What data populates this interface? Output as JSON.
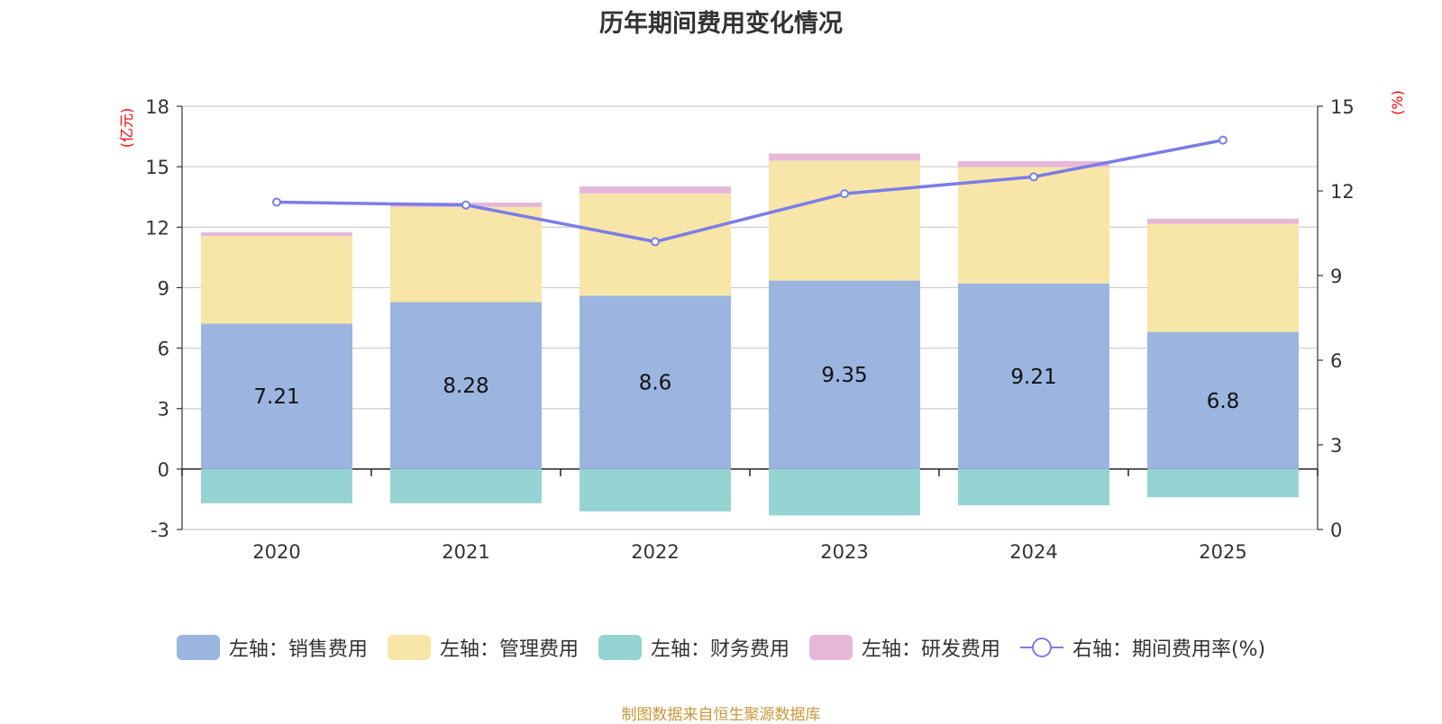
{
  "chart_data": {
    "type": "bar",
    "title": "历年期间费用变化情况",
    "categories": [
      "2020",
      "2021",
      "2022",
      "2023",
      "2024",
      "2025"
    ],
    "series": [
      {
        "name": "左轴：销售费用",
        "axis": "left",
        "color": "#9bb5e0",
        "values": [
          7.21,
          8.28,
          8.6,
          9.35,
          9.21,
          6.8
        ]
      },
      {
        "name": "左轴：管理费用",
        "axis": "left",
        "color": "#f7e6a8",
        "values": [
          4.35,
          4.72,
          5.07,
          5.95,
          5.77,
          5.37
        ]
      },
      {
        "name": "左轴：财务费用",
        "axis": "left",
        "color": "#96d3d3",
        "values": [
          -1.7,
          -1.7,
          -2.1,
          -2.3,
          -1.8,
          -1.4
        ]
      },
      {
        "name": "左轴：研发费用",
        "axis": "left",
        "color": "#e6b7d8",
        "values": [
          0.18,
          0.22,
          0.35,
          0.35,
          0.3,
          0.25
        ]
      },
      {
        "name": "右轴：期间费用率(%)",
        "axis": "right",
        "type": "line",
        "color": "#7b7de8",
        "values": [
          11.6,
          11.5,
          10.2,
          11.9,
          12.5,
          13.8
        ]
      }
    ],
    "bar_labels_series": "左轴：销售费用",
    "y_left": {
      "unit": "(亿元)",
      "min": -3,
      "max": 18,
      "ticks": [
        -3,
        0,
        3,
        6,
        9,
        12,
        15,
        18
      ]
    },
    "y_right": {
      "unit": "(%)",
      "min": 0,
      "max": 15,
      "ticks": [
        0,
        3,
        6,
        9,
        12,
        15
      ]
    },
    "grid": true,
    "legend_position": "bottom"
  },
  "source_text": "制图数据来自恒生聚源数据库"
}
